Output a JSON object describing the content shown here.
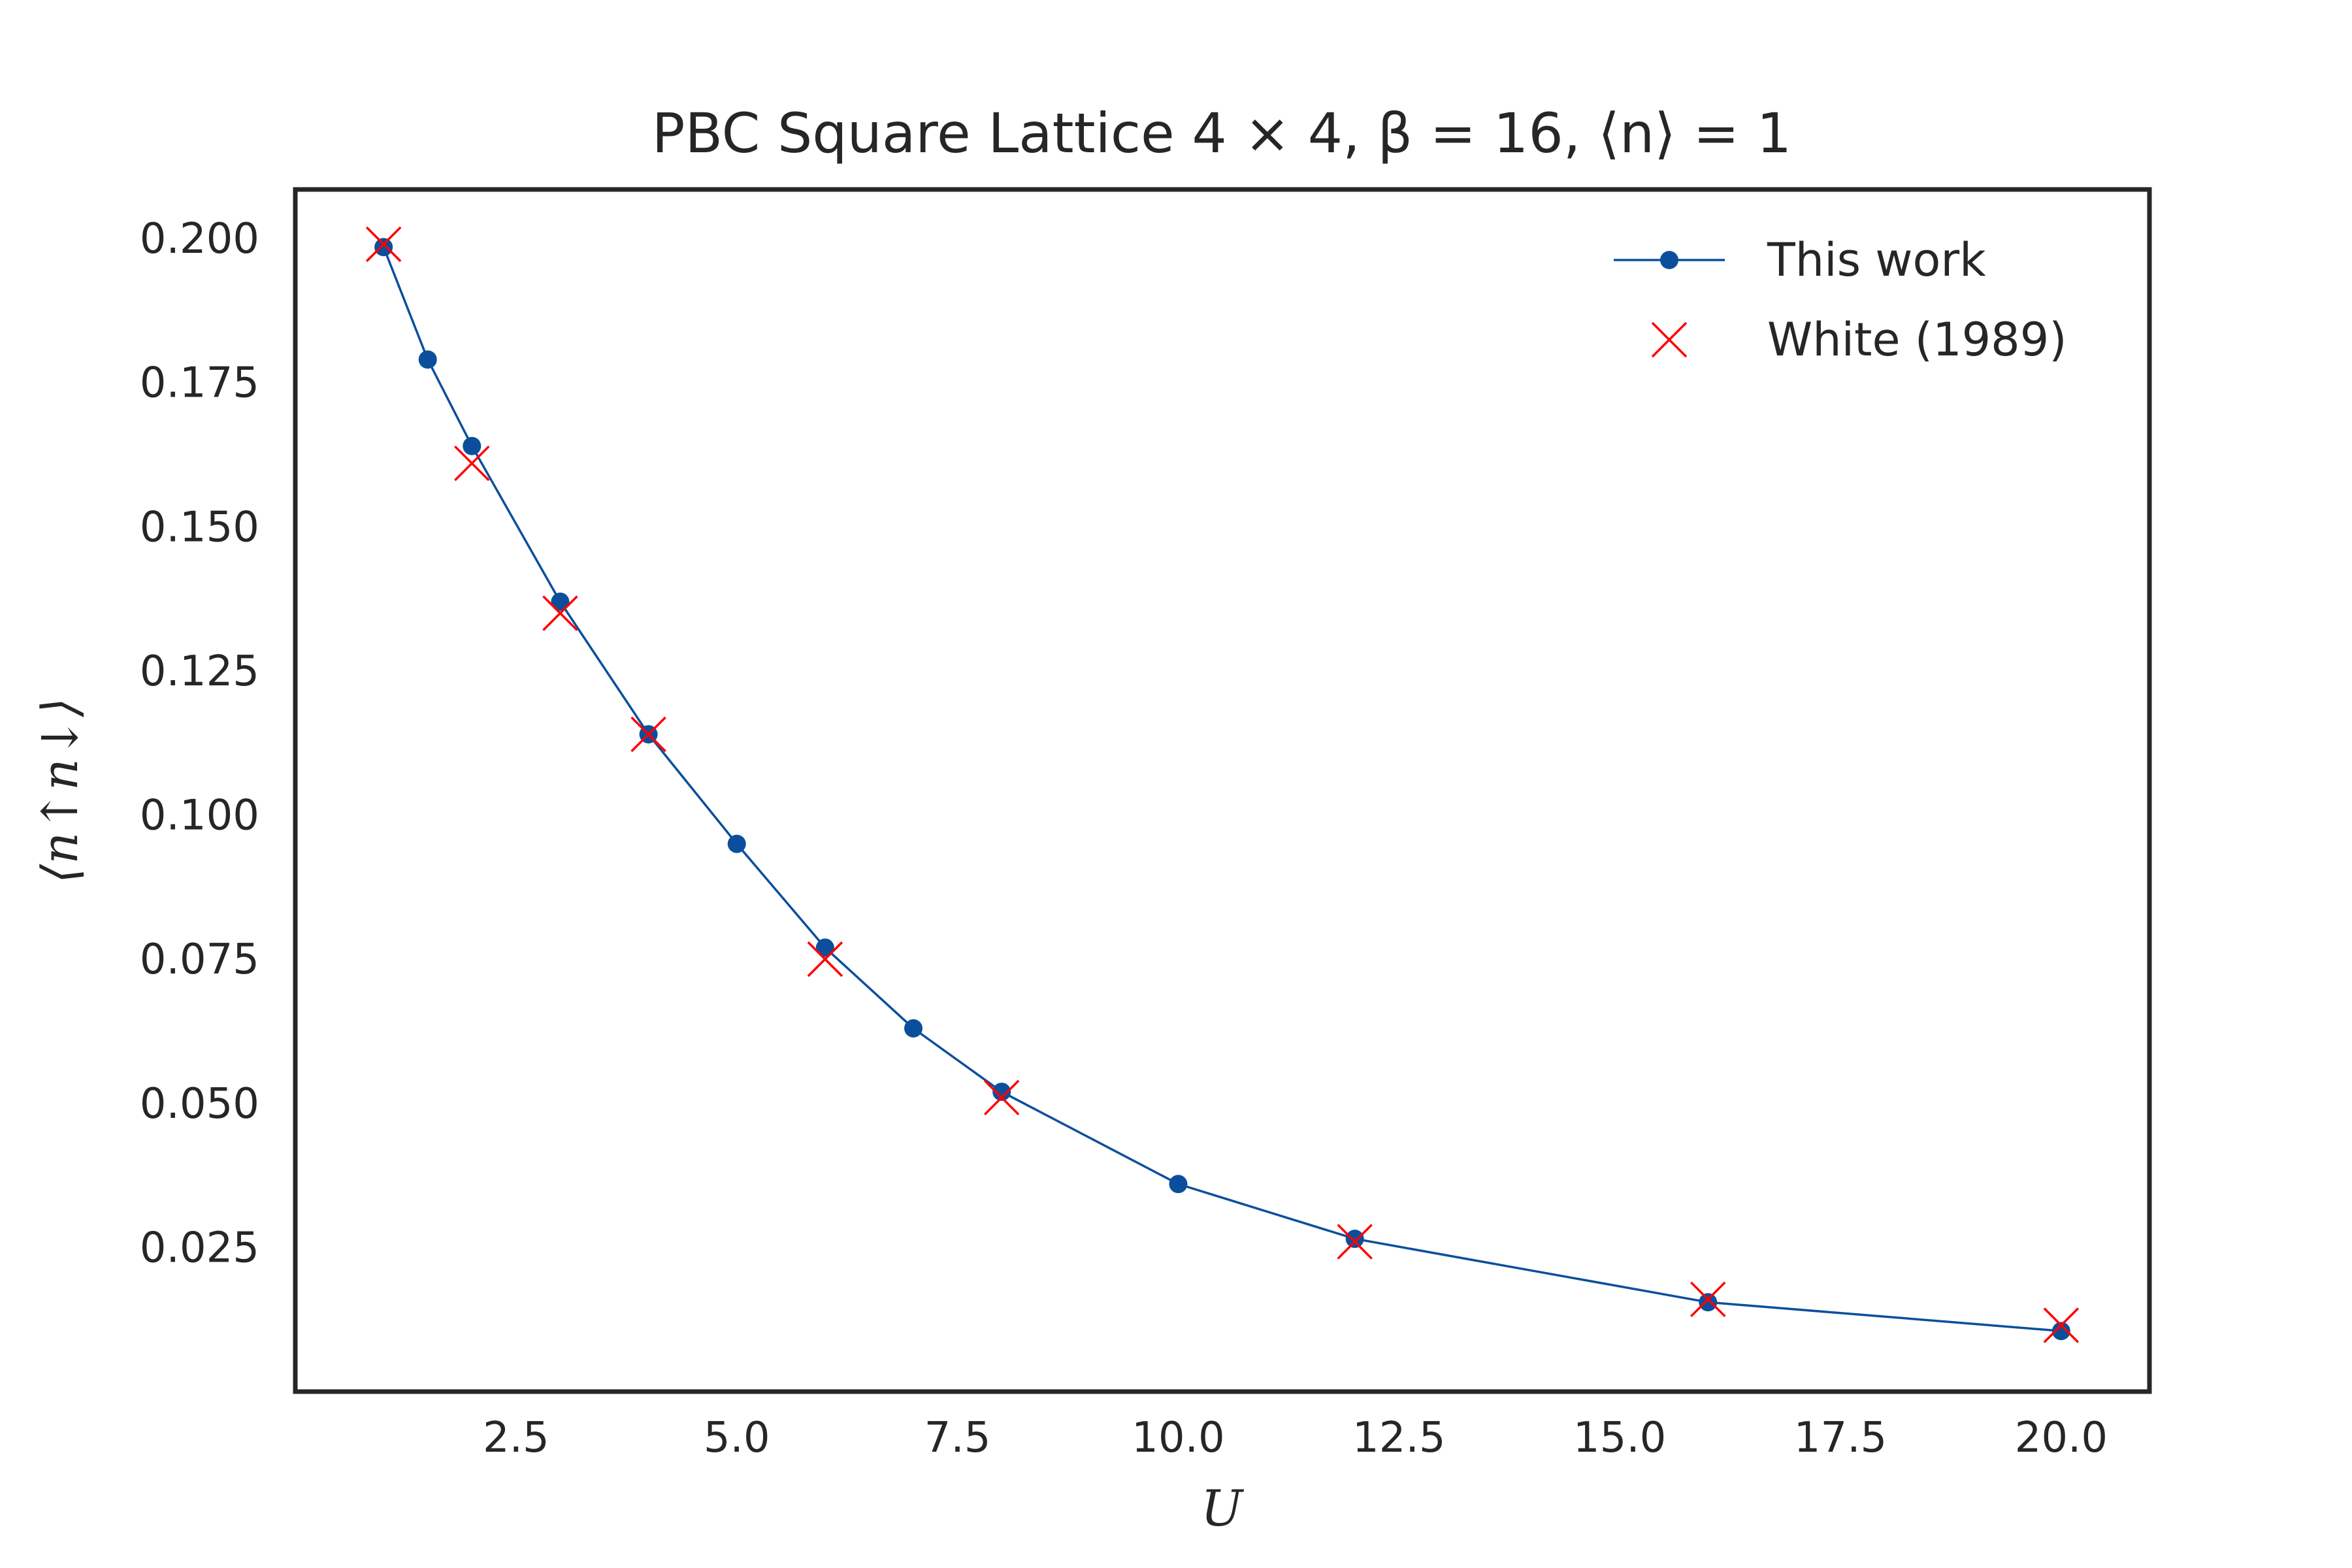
{
  "chart_data": {
    "type": "line",
    "title": "PBC Square Lattice 4 × 4, β = 16, ⟨n⟩ = 1",
    "xlabel": "U",
    "ylabel": "⟨n↑n↓⟩",
    "xlim": [
      0.0,
      21.0
    ],
    "ylim": [
      0.0,
      0.2085
    ],
    "x_ticks": [
      2.5,
      5.0,
      7.5,
      10.0,
      12.5,
      15.0,
      17.5,
      20.0
    ],
    "x_tick_labels": [
      "2.5",
      "5.0",
      "7.5",
      "10.0",
      "12.5",
      "15.0",
      "17.5",
      "20.0"
    ],
    "y_ticks": [
      0.025,
      0.05,
      0.075,
      0.1,
      0.125,
      0.15,
      0.175,
      0.2
    ],
    "y_tick_labels": [
      "0.025",
      "0.050",
      "0.075",
      "0.100",
      "0.125",
      "0.150",
      "0.175",
      "0.200"
    ],
    "grid": false,
    "legend_position": "top-right",
    "series": [
      {
        "name": "This work",
        "style": "line-marker-circle",
        "color": "#0b4f9c",
        "x": [
          1,
          1.5,
          2,
          3,
          4,
          5,
          6,
          7,
          8,
          10,
          12,
          16,
          20
        ],
        "y": [
          0.1985,
          0.179,
          0.164,
          0.137,
          0.114,
          0.095,
          0.077,
          0.063,
          0.052,
          0.036,
          0.0265,
          0.0155,
          0.0105
        ]
      },
      {
        "name": "White (1989)",
        "style": "marker-x",
        "color": "#ff0000",
        "x": [
          1,
          2,
          3,
          4,
          6,
          8,
          12,
          16,
          20
        ],
        "y": [
          0.199,
          0.161,
          0.135,
          0.114,
          0.075,
          0.051,
          0.026,
          0.016,
          0.0115
        ]
      }
    ]
  }
}
